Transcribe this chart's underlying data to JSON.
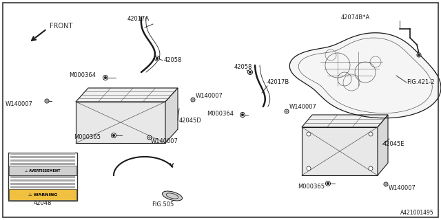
{
  "bg_color": "#ffffff",
  "line_color": "#1a1a1a",
  "gray_color": "#555555",
  "fig_id": "A421001495",
  "figsize": [
    6.4,
    3.2
  ],
  "dpi": 100,
  "xlim": [
    0,
    640
  ],
  "ylim": [
    0,
    320
  ]
}
